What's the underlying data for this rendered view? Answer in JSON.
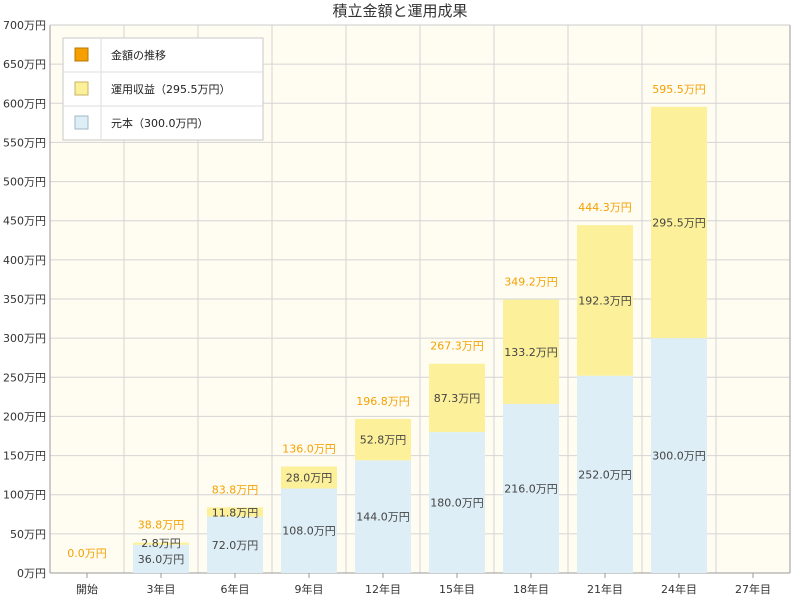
{
  "chart_data": {
    "type": "bar",
    "stacked": true,
    "title": "積立金額と運用成果",
    "categories": [
      "開始",
      "3年目",
      "6年目",
      "9年目",
      "12年目",
      "15年目",
      "18年目",
      "21年目",
      "24年目",
      "27年目"
    ],
    "series": [
      {
        "name": "元本（300.0万円）",
        "color": "#ddeef6",
        "values": [
          0,
          36,
          72,
          108,
          144,
          180,
          216,
          252,
          300,
          null
        ],
        "labels": [
          "",
          "36.0万円",
          "72.0万円",
          "108.0万円",
          "144.0万円",
          "180.0万円",
          "216.0万円",
          "252.0万円",
          "300.0万円",
          ""
        ]
      },
      {
        "name": "運用収益（295.5万円）",
        "color": "#fdf09a",
        "values": [
          0,
          2.8,
          11.8,
          28,
          52.8,
          87.3,
          133.2,
          192.3,
          295.5,
          null
        ],
        "labels": [
          "",
          "2.8万円",
          "11.8万円",
          "28.0万円",
          "52.8万円",
          "87.3万円",
          "133.2万円",
          "192.3万円",
          "295.5万円",
          ""
        ]
      }
    ],
    "totals": {
      "name": "金額の推移",
      "color": "#f5a000",
      "values": [
        0,
        38.8,
        83.8,
        136,
        196.8,
        267.3,
        349.2,
        444.3,
        595.5,
        null
      ],
      "labels": [
        "0.0万円",
        "38.8万円",
        "83.8万円",
        "136.0万円",
        "196.8万円",
        "267.3万円",
        "349.2万円",
        "444.3万円",
        "595.5万円",
        ""
      ]
    },
    "ylim": [
      0,
      700
    ],
    "ytick_step": 50,
    "ytick_unit": "万円",
    "xlabel": "",
    "ylabel": "",
    "grid": true,
    "legend_position": "top-left",
    "plot_bg": "#fffdf2"
  }
}
